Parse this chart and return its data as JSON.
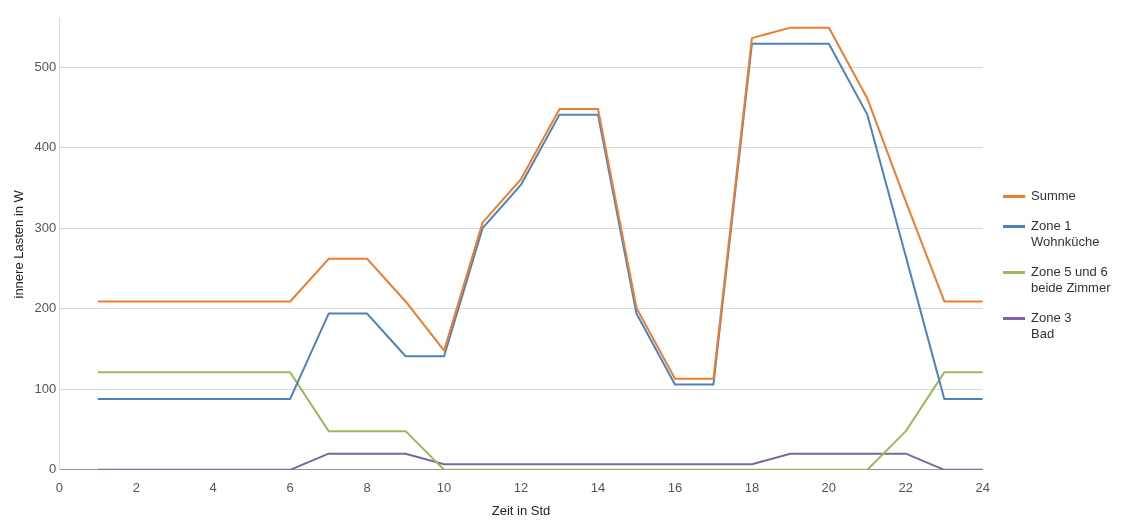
{
  "chart_data": {
    "type": "line",
    "xlabel": "Zeit in Std",
    "ylabel": "innere Lasten in W",
    "x": [
      1,
      2,
      3,
      4,
      5,
      6,
      7,
      8,
      9,
      10,
      11,
      12,
      13,
      14,
      15,
      16,
      17,
      18,
      19,
      20,
      21,
      22,
      23,
      24
    ],
    "series": [
      {
        "name": "Summe",
        "color": "#ed7d31",
        "values": [
          209,
          209,
          209,
          209,
          209,
          209,
          262,
          262,
          209,
          148,
          307,
          361,
          448,
          448,
          201,
          113,
          113,
          536,
          549,
          549,
          461,
          333,
          209,
          209
        ]
      },
      {
        "name": "Zone 1\nWohnküche",
        "color": "#4f81bd",
        "values": [
          88,
          88,
          88,
          88,
          88,
          88,
          194,
          194,
          141,
          141,
          300,
          354,
          441,
          441,
          194,
          106,
          106,
          529,
          529,
          529,
          441,
          265,
          88,
          88
        ]
      },
      {
        "name": "Zone 5 und 6\nbeide Zimmer",
        "color": "#9bbb59",
        "values": [
          121,
          121,
          121,
          121,
          121,
          121,
          48,
          48,
          48,
          0,
          0,
          0,
          0,
          0,
          0,
          0,
          0,
          0,
          0,
          0,
          0,
          48,
          121,
          121
        ]
      },
      {
        "name": "Zone 3\nBad",
        "color": "#8064a2",
        "values": [
          0,
          0,
          0,
          0,
          0,
          0,
          20,
          20,
          20,
          7,
          7,
          7,
          7,
          7,
          7,
          7,
          7,
          7,
          20,
          20,
          20,
          20,
          0,
          0
        ]
      }
    ],
    "xlim": [
      0,
      24
    ],
    "xticks": [
      0,
      2,
      4,
      6,
      8,
      10,
      12,
      14,
      16,
      18,
      20,
      22,
      24
    ],
    "ylim": [
      0,
      560
    ],
    "yticks": [
      0,
      100,
      200,
      300,
      400,
      500
    ],
    "grid": "y",
    "legend": "right",
    "marker": "none",
    "line_style": "solid"
  }
}
